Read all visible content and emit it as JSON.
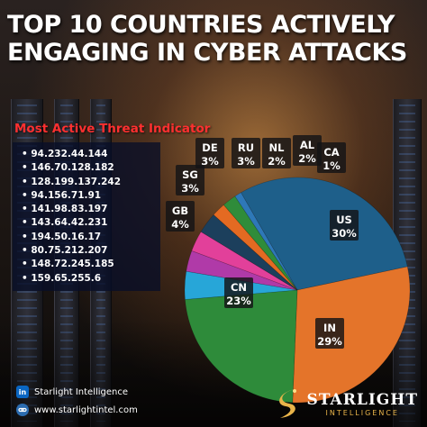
{
  "title": "TOP 10 COUNTRIES ACTIVELY ENGAGING IN CYBER ATTACKS",
  "indicator_heading": "Most Active Threat Indicator",
  "ips": [
    "94.232.44.144",
    "146.70.128.182",
    "128.199.137.242",
    "94.156.71.91",
    "141.98.83.197",
    "143.64.42.231",
    "194.50.16.17",
    "80.75.212.207",
    "148.72.245.185",
    "159.65.255.6"
  ],
  "chart_data": {
    "type": "pie",
    "title": "TOP 10 COUNTRIES ACTIVELY ENGAGING IN CYBER ATTACKS",
    "categories": [
      "US",
      "IN",
      "CN",
      "GB",
      "SG",
      "DE",
      "RU",
      "NL",
      "AL",
      "CA"
    ],
    "values": [
      30,
      29,
      23,
      4,
      3,
      3,
      3,
      2,
      2,
      1
    ],
    "value_labels": [
      "30%",
      "29%",
      "23%",
      "4%",
      "3%",
      "3%",
      "3%",
      "2%",
      "2%",
      "1%"
    ],
    "colors": [
      "#1e5f8a",
      "#e4742a",
      "#2e8b3a",
      "#27a6d8",
      "#b03aa8",
      "#e2409a",
      "#1c3f5c",
      "#e46a22",
      "#2f8c3a",
      "#2e78b8"
    ]
  },
  "footer": {
    "linkedin_label": "in",
    "company": "Starlight Intelligence",
    "website": "www.starlightintel.com"
  },
  "brand": {
    "name": "STARLIGHT",
    "sub": "INTELLIGENCE",
    "accent_color": "#e9b44a"
  }
}
